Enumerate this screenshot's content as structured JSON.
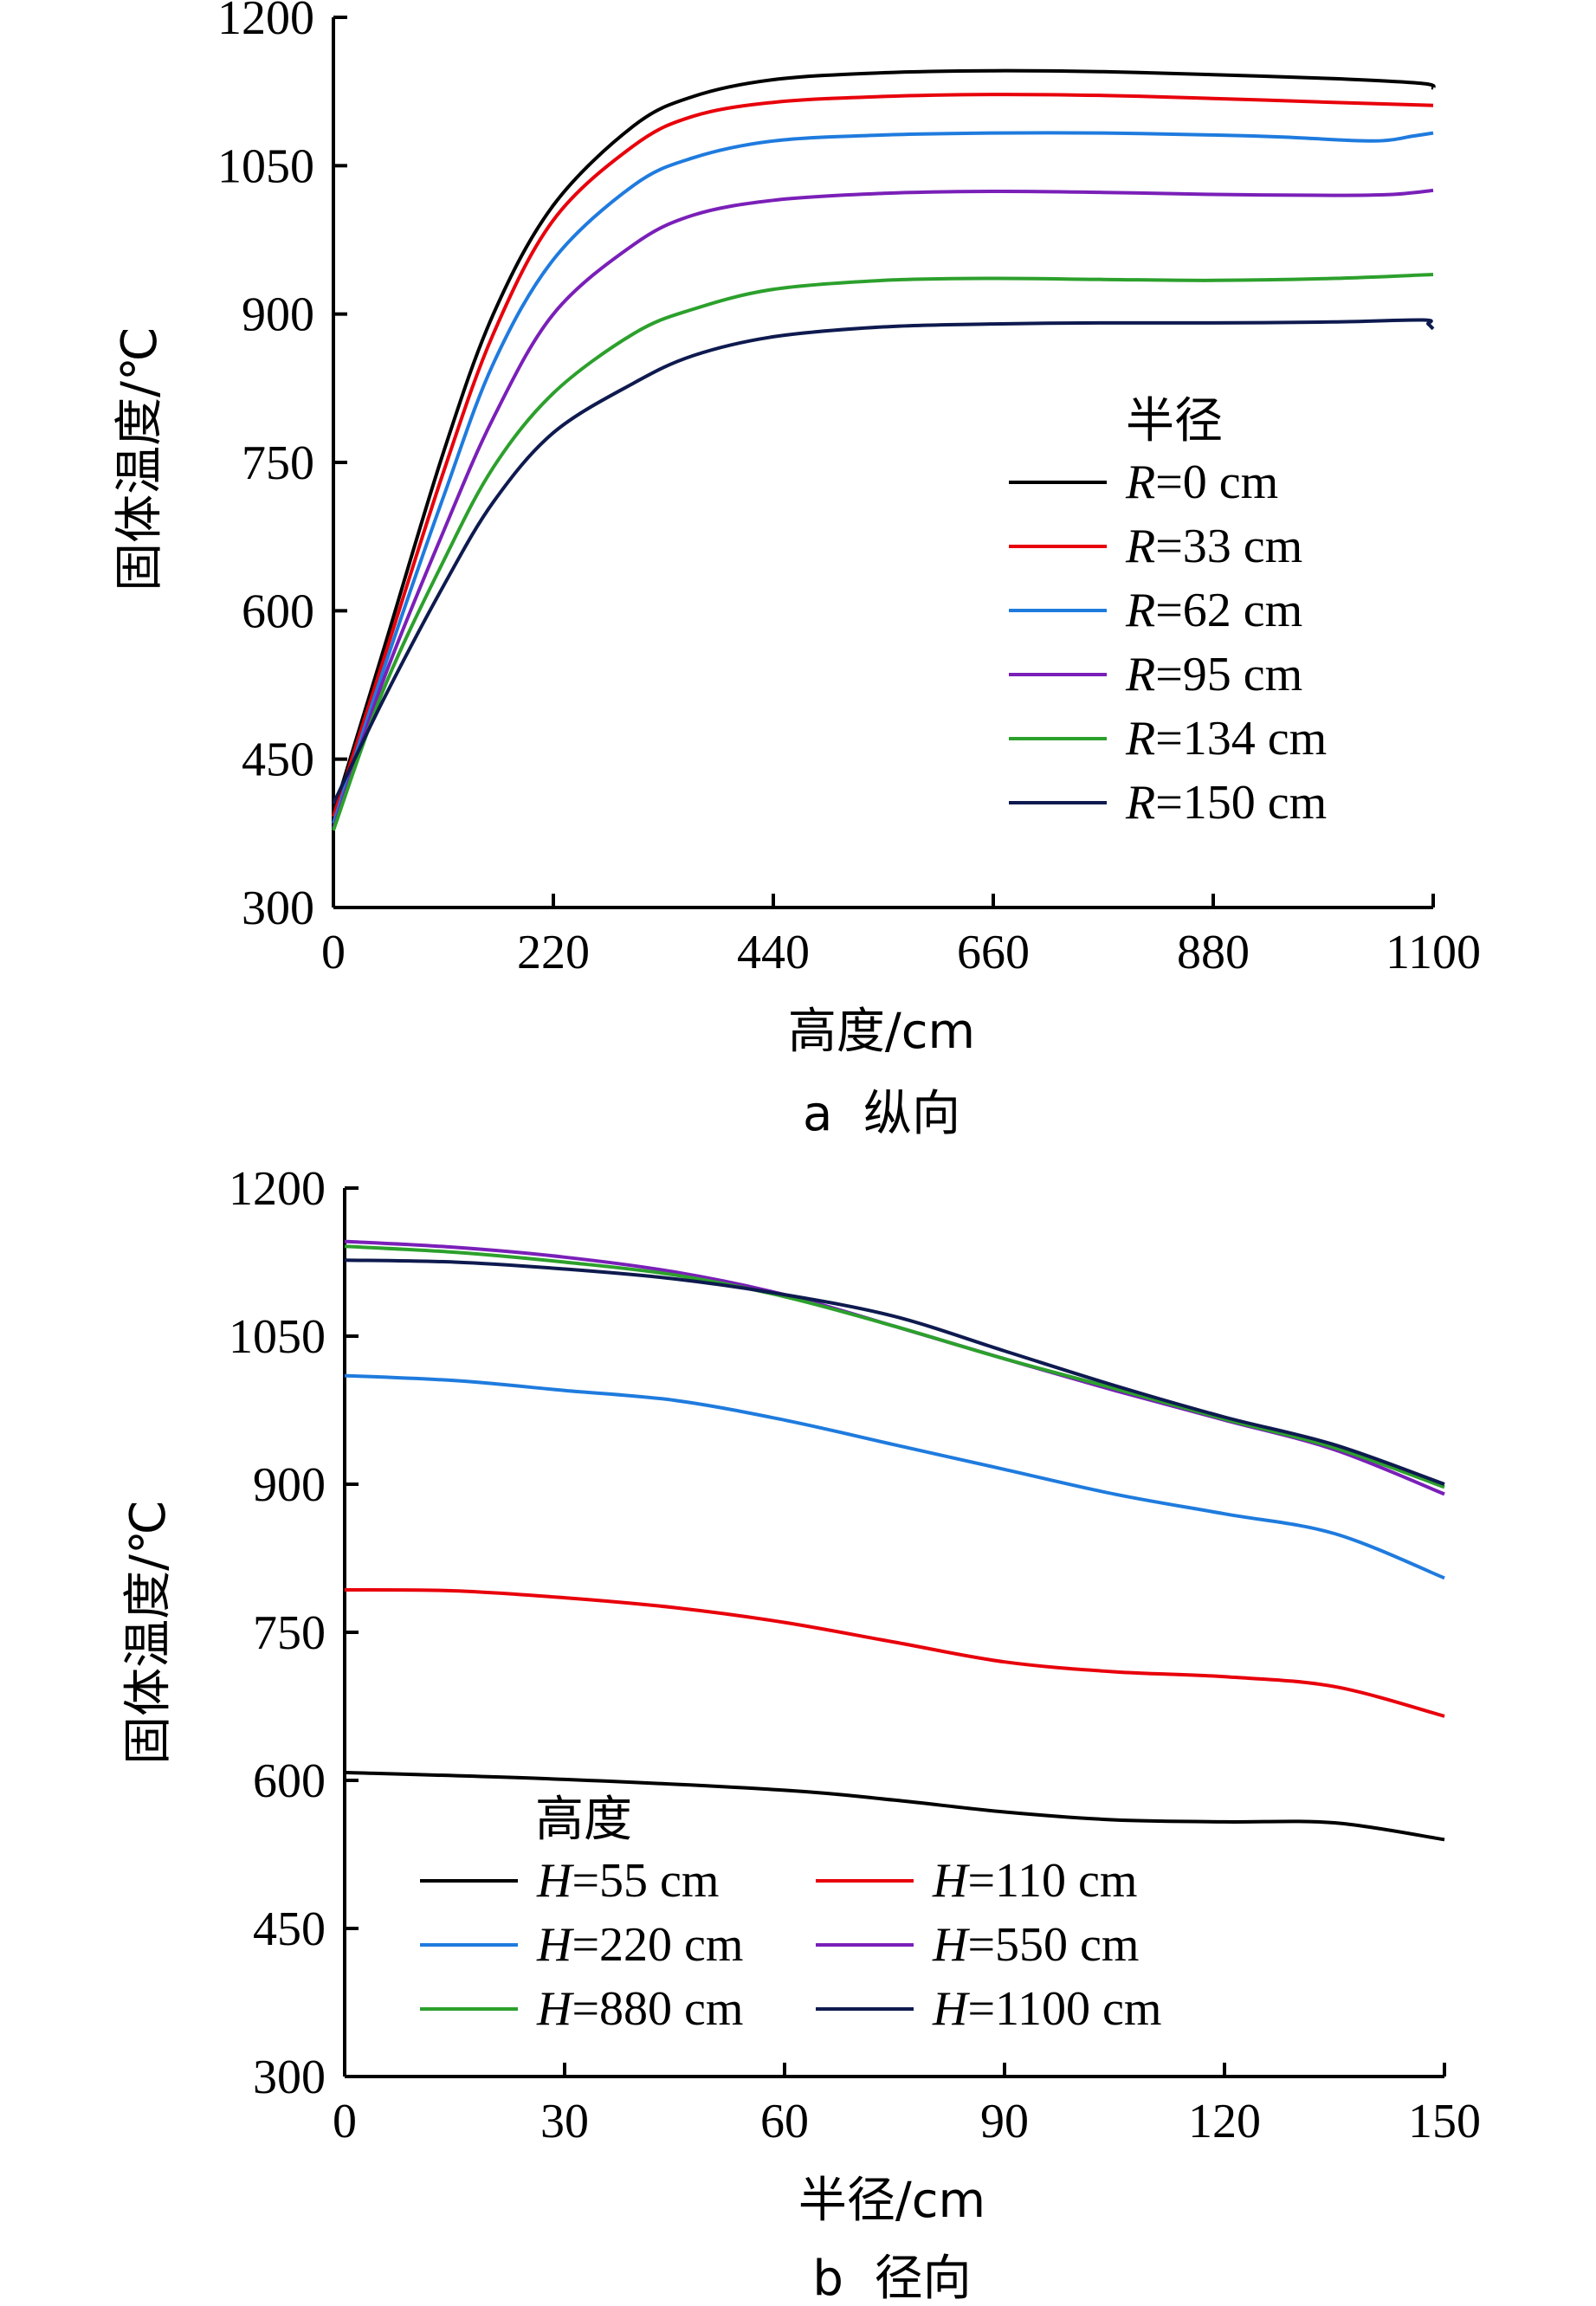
{
  "chart_data": [
    {
      "type": "line",
      "caption": "a  纵向",
      "xlabel": "高度/cm",
      "ylabel": "固体温度/℃",
      "xlim": [
        0,
        1100
      ],
      "ylim": [
        300,
        1200
      ],
      "x_ticks": [
        "0",
        "220",
        "440",
        "660",
        "880",
        "1100"
      ],
      "y_ticks": [
        "300",
        "450",
        "600",
        "750",
        "900",
        "1050",
        "1200"
      ],
      "grid": false,
      "legend": {
        "title": "半径",
        "position": "right",
        "var": "R",
        "items": [
          "=0 cm",
          "=33 cm",
          "=62 cm",
          "=95 cm",
          "=134 cm",
          "=150 cm"
        ]
      },
      "series": [
        {
          "name": "R=0 cm",
          "color": "#000000",
          "x": [
            0,
            50,
            110,
            160,
            220,
            300,
            360,
            440,
            550,
            660,
            770,
            880,
            1000,
            1090,
            1100
          ],
          "y": [
            395,
            560,
            760,
            900,
            1010,
            1090,
            1120,
            1137,
            1144,
            1146,
            1145,
            1142,
            1138,
            1133,
            1128
          ]
        },
        {
          "name": "R=33 cm",
          "color": "#e8000b",
          "x": [
            0,
            50,
            110,
            160,
            220,
            300,
            360,
            440,
            550,
            660,
            770,
            880,
            1000,
            1100
          ],
          "y": [
            392,
            550,
            740,
            880,
            995,
            1070,
            1100,
            1114,
            1120,
            1122,
            1121,
            1118,
            1114,
            1111
          ]
        },
        {
          "name": "R=62 cm",
          "color": "#1f7bde",
          "x": [
            0,
            50,
            110,
            160,
            220,
            300,
            360,
            440,
            550,
            660,
            770,
            880,
            950,
            1040,
            1080,
            1100
          ],
          "y": [
            385,
            540,
            715,
            850,
            955,
            1030,
            1058,
            1075,
            1081,
            1083,
            1083,
            1081,
            1079,
            1075,
            1080,
            1083
          ]
        },
        {
          "name": "R=95 cm",
          "color": "#7a1fb8",
          "x": [
            0,
            50,
            110,
            160,
            220,
            300,
            360,
            440,
            550,
            660,
            770,
            880,
            1000,
            1060,
            1100
          ],
          "y": [
            380,
            530,
            680,
            795,
            900,
            970,
            1000,
            1015,
            1022,
            1024,
            1023,
            1021,
            1020,
            1021,
            1025
          ]
        },
        {
          "name": "R=134 cm",
          "color": "#2ca02c",
          "x": [
            0,
            50,
            110,
            160,
            220,
            300,
            360,
            440,
            550,
            660,
            770,
            880,
            1000,
            1100
          ],
          "y": [
            378,
            520,
            650,
            745,
            820,
            880,
            905,
            925,
            934,
            936,
            935,
            934,
            936,
            940
          ]
        },
        {
          "name": "R=150 cm",
          "color": "#0e1a4f",
          "x": [
            0,
            50,
            110,
            160,
            220,
            300,
            360,
            440,
            550,
            660,
            770,
            880,
            1000,
            1090,
            1095,
            1100
          ],
          "y": [
            405,
            510,
            625,
            710,
            780,
            830,
            858,
            877,
            887,
            890,
            891,
            891,
            892,
            894,
            890,
            885
          ]
        }
      ]
    },
    {
      "type": "line",
      "caption": "b  径向",
      "xlabel": "半径/cm",
      "ylabel": "固体温度/℃",
      "xlim": [
        0,
        150
      ],
      "ylim": [
        300,
        1200
      ],
      "x_ticks": [
        "0",
        "30",
        "60",
        "90",
        "120",
        "150"
      ],
      "y_ticks": [
        "300",
        "450",
        "600",
        "750",
        "900",
        "1050",
        "1200"
      ],
      "grid": false,
      "legend": {
        "title": "高度",
        "position": "lower-left",
        "var": "H",
        "items": [
          "=55 cm",
          "=110 cm",
          "=220 cm",
          "=550 cm",
          "=880 cm",
          "=1100 cm"
        ]
      },
      "series": [
        {
          "name": "H=55 cm",
          "color": "#000000",
          "x": [
            0,
            30,
            60,
            75,
            90,
            105,
            120,
            135,
            150
          ],
          "y": [
            608,
            601,
            590,
            580,
            568,
            560,
            558,
            557,
            540
          ]
        },
        {
          "name": "H=110 cm",
          "color": "#e8000b",
          "x": [
            0,
            15,
            30,
            45,
            60,
            75,
            90,
            105,
            120,
            135,
            150
          ],
          "y": [
            793,
            792,
            785,
            775,
            760,
            740,
            720,
            710,
            705,
            695,
            665
          ]
        },
        {
          "name": "H=220 cm",
          "color": "#1f7bde",
          "x": [
            0,
            15,
            30,
            45,
            60,
            75,
            90,
            105,
            120,
            135,
            150
          ],
          "y": [
            1010,
            1005,
            995,
            985,
            965,
            940,
            915,
            890,
            870,
            850,
            805
          ]
        },
        {
          "name": "H=550 cm",
          "color": "#7a1fb8",
          "x": [
            0,
            15,
            30,
            45,
            60,
            75,
            90,
            105,
            120,
            135,
            150
          ],
          "y": [
            1146,
            1140,
            1130,
            1115,
            1092,
            1060,
            1027,
            995,
            965,
            935,
            890
          ]
        },
        {
          "name": "H=880 cm",
          "color": "#2ca02c",
          "x": [
            0,
            15,
            30,
            45,
            60,
            75,
            90,
            105,
            120,
            135,
            150
          ],
          "y": [
            1141,
            1135,
            1125,
            1112,
            1090,
            1060,
            1027,
            997,
            966,
            937,
            897
          ]
        },
        {
          "name": "H=1100 cm",
          "color": "#0e1a4f",
          "x": [
            0,
            15,
            30,
            45,
            60,
            75,
            90,
            105,
            120,
            135,
            150
          ],
          "y": [
            1127,
            1125,
            1118,
            1108,
            1092,
            1070,
            1035,
            1000,
            968,
            940,
            900
          ]
        }
      ]
    }
  ]
}
